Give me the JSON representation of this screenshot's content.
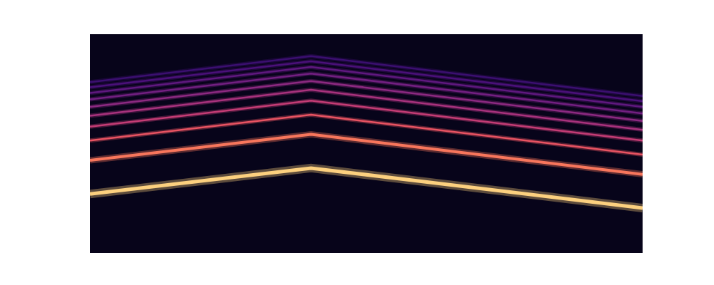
{
  "chart_data": {
    "type": "line",
    "log": "y",
    "grid": false,
    "tick_labels": false,
    "xlim": [
      0,
      10
    ],
    "ylim": [
      100,
      9000
    ],
    "x": [
      0,
      4,
      10
    ],
    "series": [
      {
        "color": "#fcd07f",
        "values": [
          336,
          573,
          252
        ]
      },
      {
        "color": "#f8765c",
        "values": [
          672,
          1146,
          504
        ]
      },
      {
        "color": "#e85362",
        "values": [
          1008,
          1719,
          756
        ]
      },
      {
        "color": "#c43c75",
        "values": [
          1344,
          2292,
          1008
        ]
      },
      {
        "color": "#a8327d",
        "values": [
          1680,
          2865,
          1260
        ]
      },
      {
        "color": "#8c2981",
        "values": [
          2016,
          3438,
          1512
        ]
      },
      {
        "color": "#721f81",
        "values": [
          2352,
          4011,
          1764
        ]
      },
      {
        "color": "#5f187f",
        "values": [
          2688,
          4584,
          2016
        ]
      },
      {
        "color": "#4a1079",
        "values": [
          3024,
          5157,
          2268
        ]
      },
      {
        "color": "#3b0f70",
        "values": [
          3360,
          5730,
          2520
        ]
      }
    ]
  }
}
